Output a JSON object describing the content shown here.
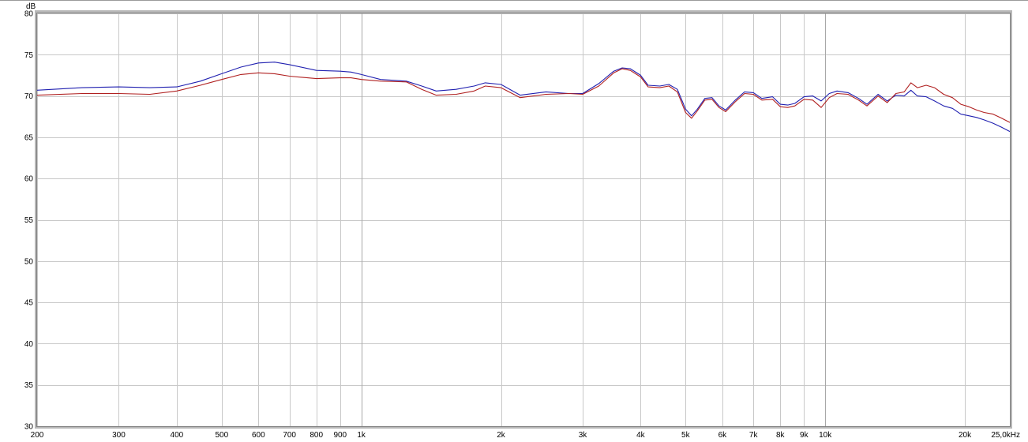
{
  "chart_data": {
    "type": "line",
    "ylabel": "dB",
    "xscale": "log",
    "xlim": [
      200,
      25000
    ],
    "ylim": [
      30,
      80
    ],
    "grid": true,
    "x_tick_labels": [
      {
        "value": 200,
        "label": "200"
      },
      {
        "value": 300,
        "label": "300"
      },
      {
        "value": 400,
        "label": "400"
      },
      {
        "value": 500,
        "label": "500"
      },
      {
        "value": 600,
        "label": "600"
      },
      {
        "value": 700,
        "label": "700"
      },
      {
        "value": 800,
        "label": "800"
      },
      {
        "value": 900,
        "label": "900"
      },
      {
        "value": 1000,
        "label": "1k"
      },
      {
        "value": 2000,
        "label": "2k"
      },
      {
        "value": 3000,
        "label": "3k"
      },
      {
        "value": 4000,
        "label": "4k"
      },
      {
        "value": 5000,
        "label": "5k"
      },
      {
        "value": 6000,
        "label": "6k"
      },
      {
        "value": 7000,
        "label": "7k"
      },
      {
        "value": 8000,
        "label": "8k"
      },
      {
        "value": 9000,
        "label": "9k"
      },
      {
        "value": 10000,
        "label": "10k"
      },
      {
        "value": 20000,
        "label": "20k"
      },
      {
        "value": 25000,
        "label": "25,0kHz"
      }
    ],
    "y_tick_labels": [
      {
        "value": 80,
        "label": "80"
      },
      {
        "value": 75,
        "label": "75"
      },
      {
        "value": 70,
        "label": "70"
      },
      {
        "value": 65,
        "label": "65"
      },
      {
        "value": 60,
        "label": "60"
      },
      {
        "value": 55,
        "label": "55"
      },
      {
        "value": 50,
        "label": "50"
      },
      {
        "value": 45,
        "label": "45"
      },
      {
        "value": 40,
        "label": "40"
      },
      {
        "value": 35,
        "label": "35"
      },
      {
        "value": 30,
        "label": "30"
      }
    ],
    "series": [
      {
        "color": "#2020b0",
        "points": [
          [
            200,
            70.7
          ],
          [
            250,
            71.0
          ],
          [
            300,
            71.1
          ],
          [
            350,
            71.0
          ],
          [
            400,
            71.1
          ],
          [
            450,
            71.8
          ],
          [
            500,
            72.7
          ],
          [
            550,
            73.5
          ],
          [
            600,
            74.0
          ],
          [
            650,
            74.1
          ],
          [
            700,
            73.8
          ],
          [
            800,
            73.1
          ],
          [
            900,
            73.0
          ],
          [
            950,
            72.9
          ],
          [
            1000,
            72.6
          ],
          [
            1100,
            72.0
          ],
          [
            1250,
            71.8
          ],
          [
            1350,
            71.2
          ],
          [
            1450,
            70.6
          ],
          [
            1600,
            70.8
          ],
          [
            1750,
            71.2
          ],
          [
            1850,
            71.6
          ],
          [
            2000,
            71.4
          ],
          [
            2200,
            70.1
          ],
          [
            2500,
            70.5
          ],
          [
            2800,
            70.3
          ],
          [
            3000,
            70.3
          ],
          [
            3250,
            71.5
          ],
          [
            3500,
            73.0
          ],
          [
            3650,
            73.4
          ],
          [
            3800,
            73.3
          ],
          [
            4000,
            72.5
          ],
          [
            4150,
            71.3
          ],
          [
            4400,
            71.2
          ],
          [
            4600,
            71.4
          ],
          [
            4800,
            70.8
          ],
          [
            5000,
            68.4
          ],
          [
            5150,
            67.6
          ],
          [
            5300,
            68.4
          ],
          [
            5500,
            69.7
          ],
          [
            5700,
            69.8
          ],
          [
            5900,
            68.8
          ],
          [
            6100,
            68.3
          ],
          [
            6400,
            69.5
          ],
          [
            6700,
            70.5
          ],
          [
            7000,
            70.4
          ],
          [
            7300,
            69.7
          ],
          [
            7700,
            69.9
          ],
          [
            8000,
            69.0
          ],
          [
            8300,
            68.9
          ],
          [
            8600,
            69.1
          ],
          [
            9000,
            69.9
          ],
          [
            9400,
            70.0
          ],
          [
            9800,
            69.4
          ],
          [
            10200,
            70.3
          ],
          [
            10600,
            70.6
          ],
          [
            11200,
            70.4
          ],
          [
            11800,
            69.7
          ],
          [
            12300,
            69.0
          ],
          [
            13000,
            70.2
          ],
          [
            13600,
            69.4
          ],
          [
            14200,
            70.1
          ],
          [
            14800,
            70.0
          ],
          [
            15300,
            70.7
          ],
          [
            15800,
            70.0
          ],
          [
            16500,
            69.9
          ],
          [
            17200,
            69.4
          ],
          [
            18000,
            68.8
          ],
          [
            18800,
            68.5
          ],
          [
            19600,
            67.8
          ],
          [
            20400,
            67.6
          ],
          [
            21200,
            67.4
          ],
          [
            22000,
            67.1
          ],
          [
            23000,
            66.7
          ],
          [
            24000,
            66.2
          ],
          [
            25000,
            65.7
          ]
        ]
      },
      {
        "color": "#b02020",
        "points": [
          [
            200,
            70.1
          ],
          [
            250,
            70.3
          ],
          [
            300,
            70.3
          ],
          [
            350,
            70.2
          ],
          [
            400,
            70.6
          ],
          [
            450,
            71.3
          ],
          [
            500,
            72.0
          ],
          [
            550,
            72.6
          ],
          [
            600,
            72.8
          ],
          [
            650,
            72.7
          ],
          [
            700,
            72.4
          ],
          [
            800,
            72.1
          ],
          [
            900,
            72.2
          ],
          [
            950,
            72.2
          ],
          [
            1000,
            72.0
          ],
          [
            1100,
            71.8
          ],
          [
            1250,
            71.7
          ],
          [
            1350,
            70.8
          ],
          [
            1450,
            70.1
          ],
          [
            1600,
            70.2
          ],
          [
            1750,
            70.6
          ],
          [
            1850,
            71.2
          ],
          [
            2000,
            71.0
          ],
          [
            2200,
            69.8
          ],
          [
            2500,
            70.2
          ],
          [
            2800,
            70.3
          ],
          [
            3000,
            70.2
          ],
          [
            3250,
            71.2
          ],
          [
            3500,
            72.8
          ],
          [
            3650,
            73.3
          ],
          [
            3800,
            73.1
          ],
          [
            4000,
            72.3
          ],
          [
            4150,
            71.1
          ],
          [
            4400,
            71.0
          ],
          [
            4600,
            71.2
          ],
          [
            4800,
            70.5
          ],
          [
            5000,
            68.0
          ],
          [
            5150,
            67.3
          ],
          [
            5300,
            68.2
          ],
          [
            5500,
            69.5
          ],
          [
            5700,
            69.6
          ],
          [
            5900,
            68.6
          ],
          [
            6100,
            68.1
          ],
          [
            6400,
            69.3
          ],
          [
            6700,
            70.3
          ],
          [
            7000,
            70.2
          ],
          [
            7300,
            69.5
          ],
          [
            7700,
            69.6
          ],
          [
            8000,
            68.7
          ],
          [
            8300,
            68.6
          ],
          [
            8600,
            68.8
          ],
          [
            9000,
            69.6
          ],
          [
            9400,
            69.5
          ],
          [
            9800,
            68.6
          ],
          [
            10200,
            69.8
          ],
          [
            10600,
            70.3
          ],
          [
            11200,
            70.2
          ],
          [
            11800,
            69.5
          ],
          [
            12300,
            68.8
          ],
          [
            13000,
            70.0
          ],
          [
            13600,
            69.2
          ],
          [
            14200,
            70.3
          ],
          [
            14800,
            70.5
          ],
          [
            15300,
            71.6
          ],
          [
            15800,
            71.0
          ],
          [
            16500,
            71.3
          ],
          [
            17200,
            71.0
          ],
          [
            18000,
            70.2
          ],
          [
            18800,
            69.8
          ],
          [
            19600,
            69.0
          ],
          [
            20400,
            68.7
          ],
          [
            21200,
            68.3
          ],
          [
            22000,
            68.0
          ],
          [
            23000,
            67.8
          ],
          [
            24000,
            67.3
          ],
          [
            25000,
            66.8
          ]
        ]
      }
    ]
  }
}
